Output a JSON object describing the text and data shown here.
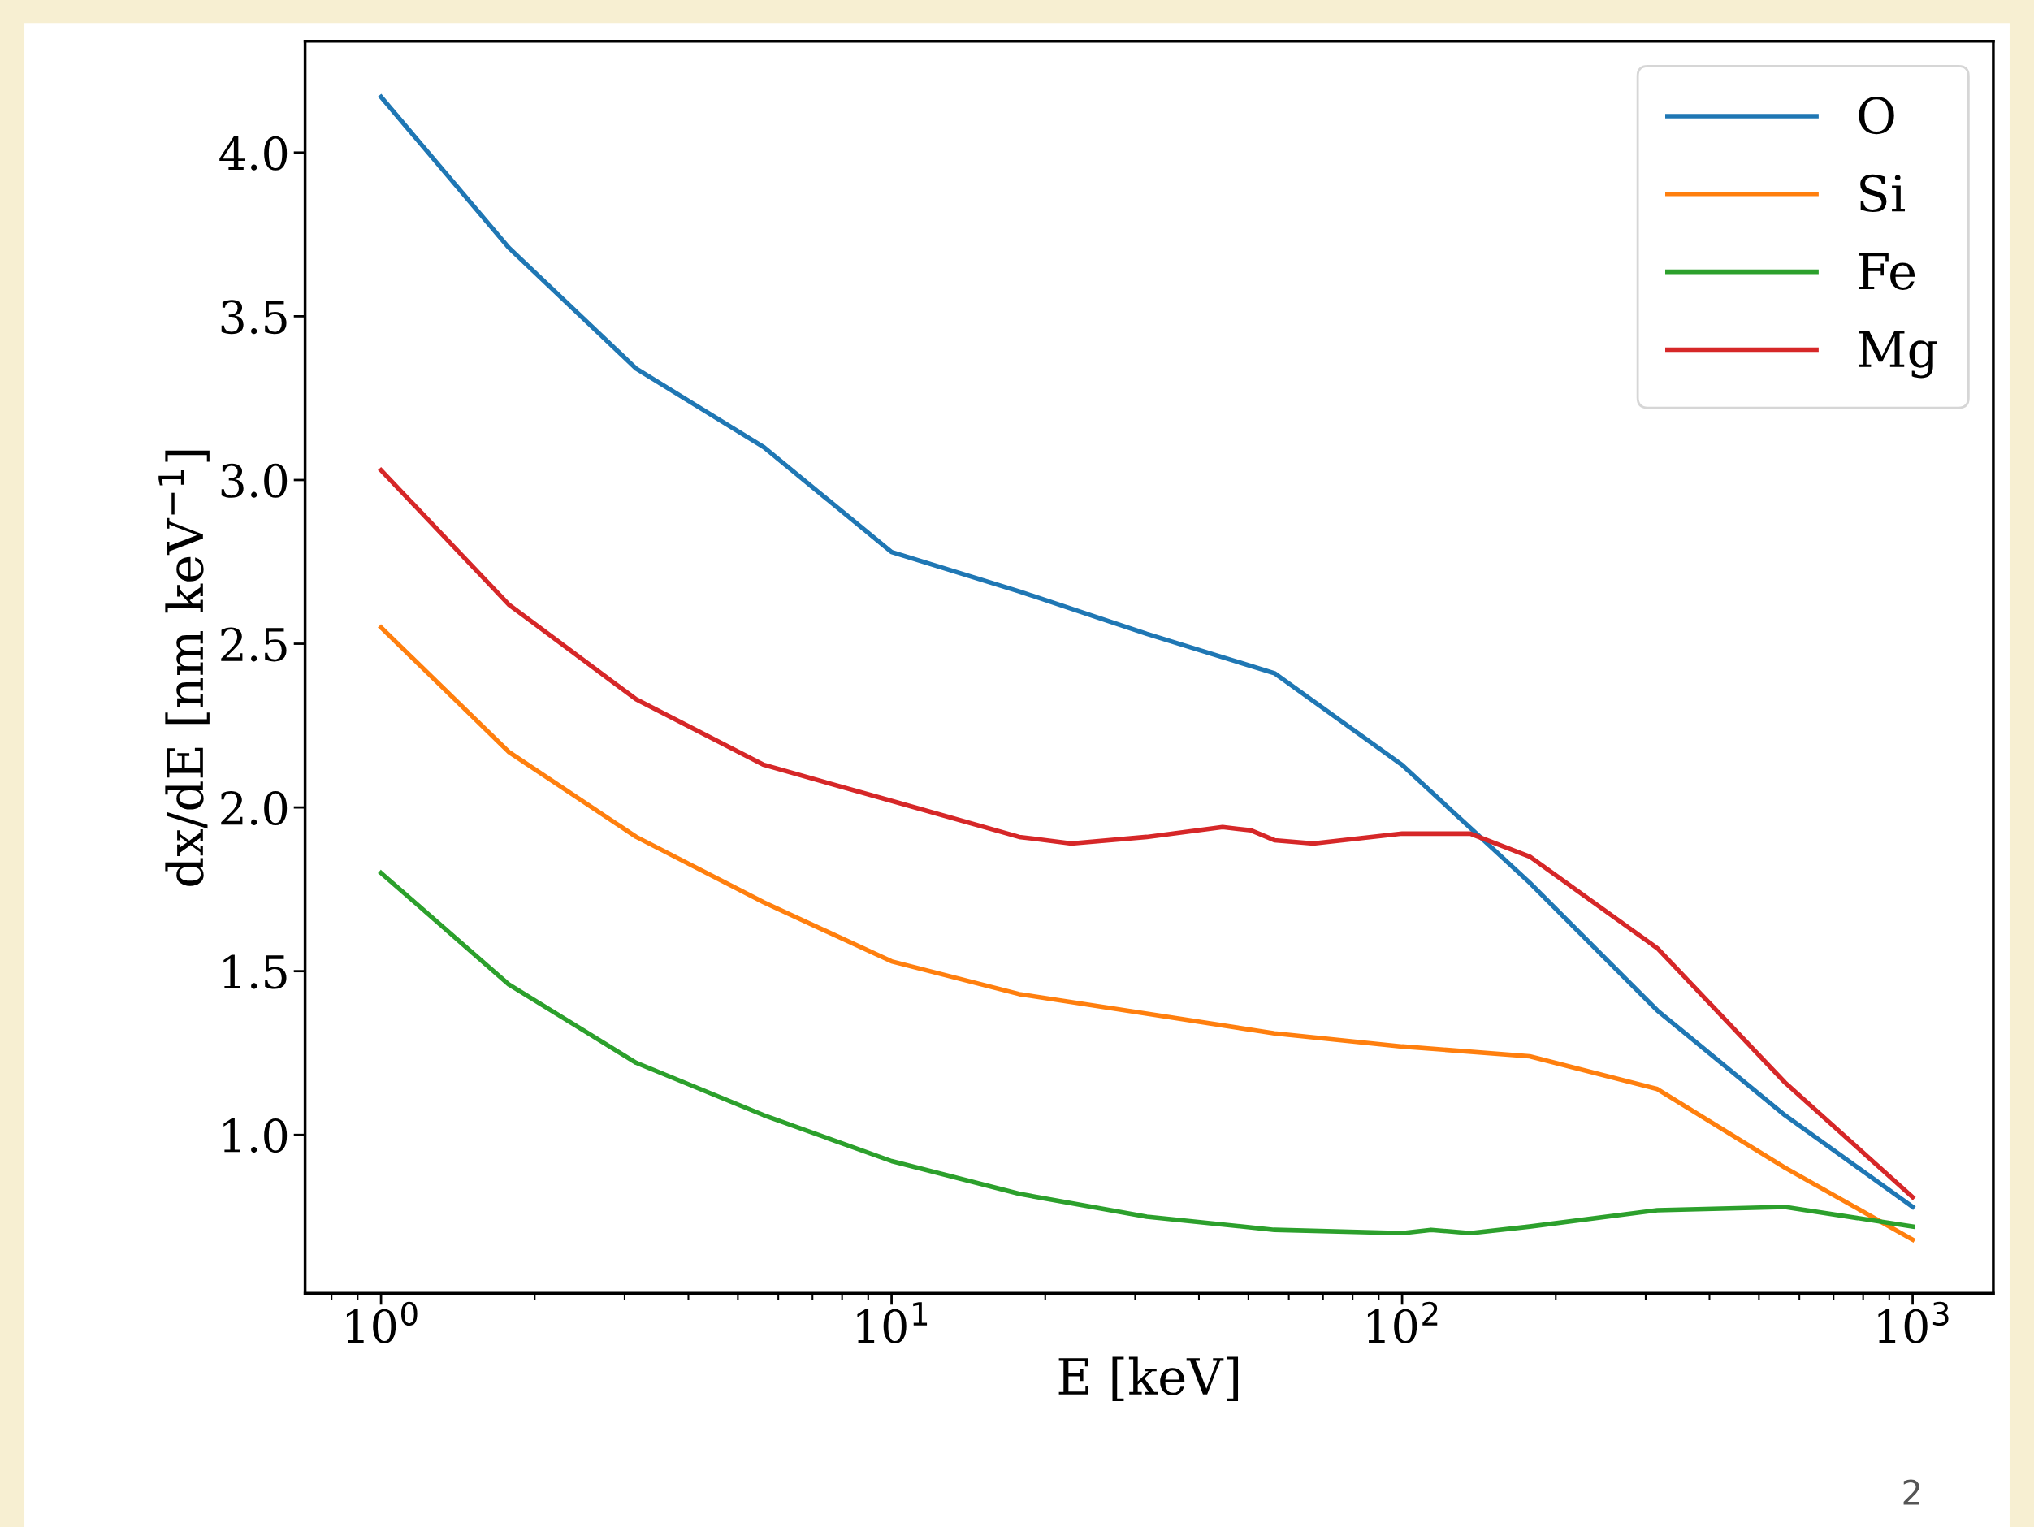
{
  "chart_data": {
    "type": "line",
    "xlabel": "E [keV]",
    "ylabel": "dx/dE [nm keV$^{−1}$]",
    "log": "x",
    "grid": false,
    "legend": "top right",
    "line_style": "solid",
    "marker": "none",
    "xlim": [
      0.71,
      1439
    ],
    "ylim": [
      0.516,
      4.34
    ],
    "xticks": [
      {
        "value": 1,
        "label": "10$^{0}$"
      },
      {
        "value": 10,
        "label": "10$^{1}$"
      },
      {
        "value": 100,
        "label": "10$^{2}$"
      },
      {
        "value": 1000,
        "label": "10$^{3}$"
      }
    ],
    "yticks": [
      {
        "value": 1.0,
        "label": "1.0"
      },
      {
        "value": 1.5,
        "label": "1.5"
      },
      {
        "value": 2.0,
        "label": "2.0"
      },
      {
        "value": 2.5,
        "label": "2.5"
      },
      {
        "value": 3.0,
        "label": "3.0"
      },
      {
        "value": 3.5,
        "label": "3.5"
      },
      {
        "value": 4.0,
        "label": "4.0"
      }
    ],
    "series": [
      {
        "name": "O",
        "color": "#1f77b4",
        "x": [
          1,
          1.778,
          3.162,
          5.623,
          10,
          17.78,
          31.62,
          56.23,
          100,
          177.8,
          316.2,
          562.3,
          1000
        ],
        "values": [
          4.17,
          3.71,
          3.34,
          3.1,
          2.78,
          2.66,
          2.53,
          2.41,
          2.13,
          1.77,
          1.38,
          1.06,
          0.78
        ]
      },
      {
        "name": "Si",
        "color": "#ff7f0e",
        "x": [
          1,
          1.778,
          3.162,
          5.623,
          10,
          17.78,
          31.62,
          56.23,
          100,
          177.8,
          316.2,
          562.3,
          1000
        ],
        "values": [
          2.55,
          2.17,
          1.91,
          1.71,
          1.53,
          1.43,
          1.37,
          1.31,
          1.27,
          1.24,
          1.14,
          0.9,
          0.68
        ]
      },
      {
        "name": "Fe",
        "color": "#2ca02c",
        "x": [
          1,
          1.778,
          3.162,
          5.623,
          10,
          17.78,
          31.62,
          56.23,
          100,
          114,
          136,
          177.8,
          316.2,
          562.3,
          1000
        ],
        "values": [
          1.8,
          1.46,
          1.22,
          1.06,
          0.92,
          0.82,
          0.75,
          0.71,
          0.7,
          0.71,
          0.7,
          0.72,
          0.77,
          0.78,
          0.72
        ]
      },
      {
        "name": "Mg",
        "color": "#d62728",
        "x": [
          1,
          1.778,
          3.162,
          5.623,
          10,
          17.78,
          22.5,
          31.62,
          44.5,
          50.6,
          56.23,
          67,
          100,
          136,
          177.8,
          316.2,
          562.3,
          1000
        ],
        "values": [
          3.03,
          2.62,
          2.33,
          2.13,
          2.02,
          1.91,
          1.89,
          1.91,
          1.94,
          1.93,
          1.9,
          1.89,
          1.92,
          1.92,
          1.85,
          1.57,
          1.16,
          0.81
        ]
      }
    ],
    "annotations": [
      "2"
    ]
  }
}
